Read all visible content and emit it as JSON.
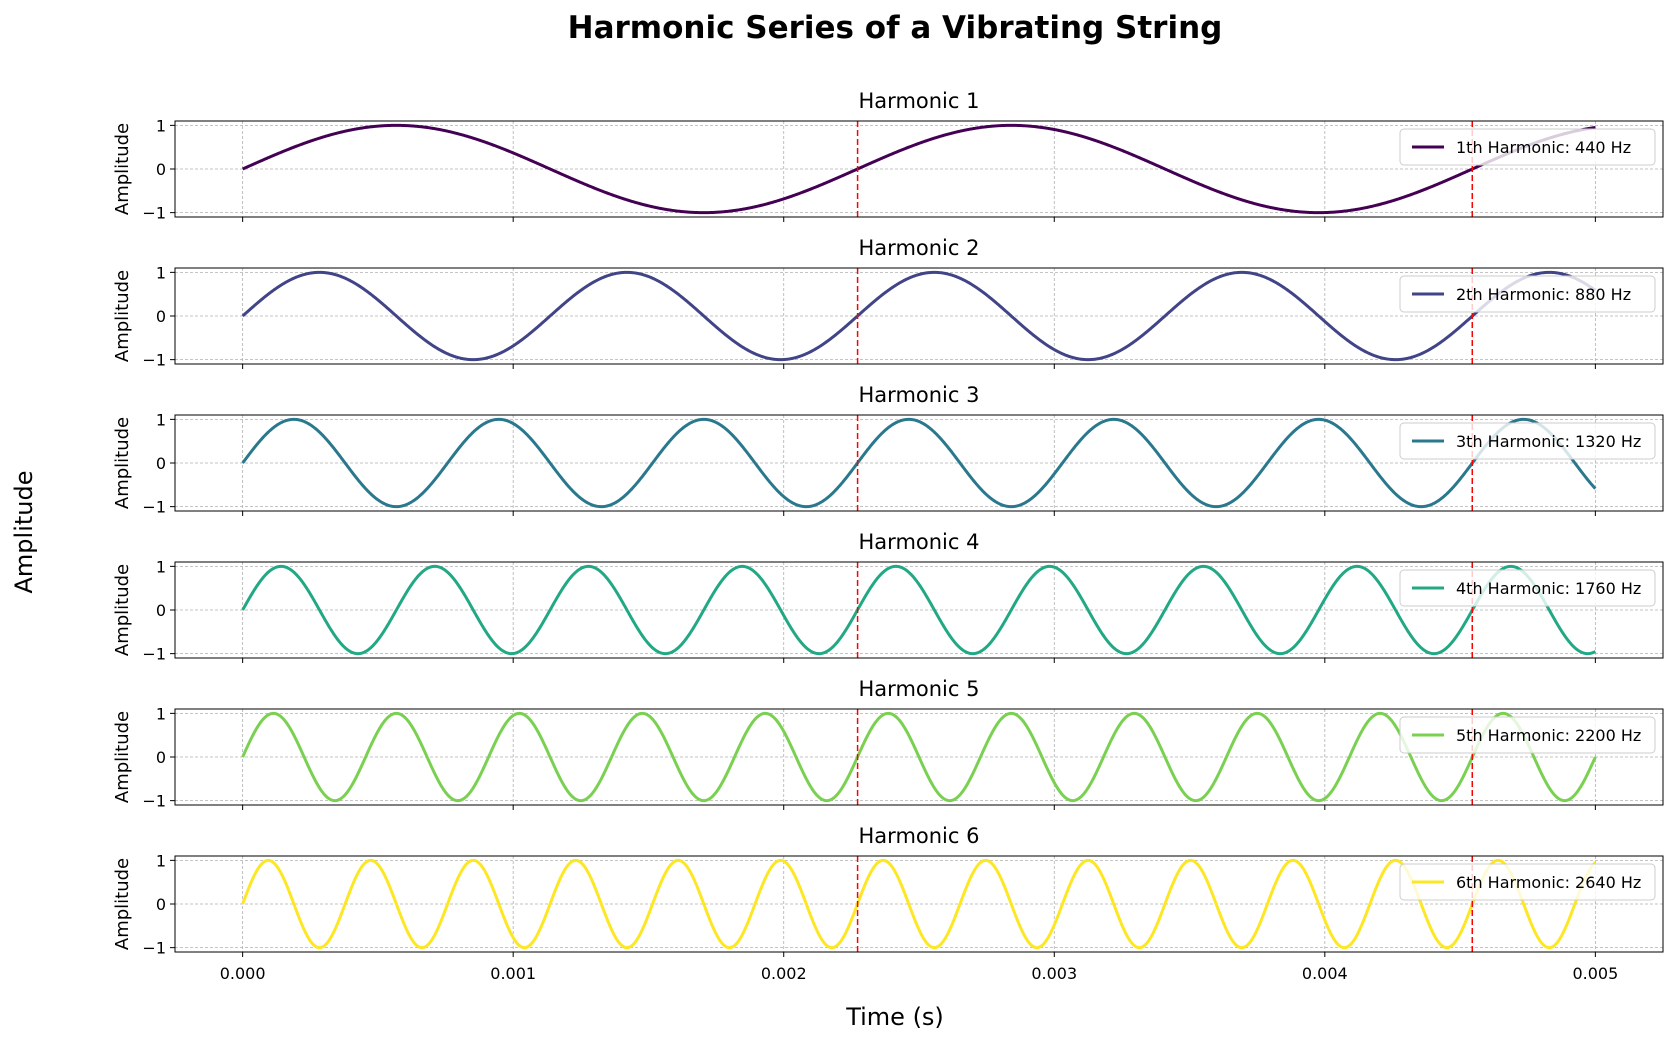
{
  "figure": {
    "title": "Harmonic Series of a Vibrating String",
    "xlabel": "Time (s)",
    "ylabel": "Amplitude"
  },
  "chart_data": [
    {
      "type": "line",
      "title": "Harmonic 1",
      "ylabel": "Amplitude",
      "series": [
        {
          "name": "1th Harmonic: 440 Hz",
          "function": "sin(2*pi*f*t)",
          "frequency": 440,
          "color": "#440154"
        }
      ],
      "x_range": [
        0,
        0.005
      ],
      "xlim": [
        -0.00025,
        0.00525
      ],
      "ylim": [
        -1.1,
        1.1
      ],
      "yticks": [
        -1,
        0,
        1
      ],
      "vlines": [
        0.002273,
        0.004545
      ],
      "vline_color": "#ff0000",
      "grid": true,
      "legend": "upper right"
    },
    {
      "type": "line",
      "title": "Harmonic 2",
      "ylabel": "Amplitude",
      "series": [
        {
          "name": "2th Harmonic: 880 Hz",
          "function": "sin(2*pi*f*t)",
          "frequency": 880,
          "color": "#414487"
        }
      ],
      "x_range": [
        0,
        0.005
      ],
      "xlim": [
        -0.00025,
        0.00525
      ],
      "ylim": [
        -1.1,
        1.1
      ],
      "yticks": [
        -1,
        0,
        1
      ],
      "vlines": [
        0.002273,
        0.004545
      ],
      "vline_color": "#ff0000",
      "grid": true,
      "legend": "upper right"
    },
    {
      "type": "line",
      "title": "Harmonic 3",
      "ylabel": "Amplitude",
      "series": [
        {
          "name": "3th Harmonic: 1320 Hz",
          "function": "sin(2*pi*f*t)",
          "frequency": 1320,
          "color": "#2a788e"
        }
      ],
      "x_range": [
        0,
        0.005
      ],
      "xlim": [
        -0.00025,
        0.00525
      ],
      "ylim": [
        -1.1,
        1.1
      ],
      "yticks": [
        -1,
        0,
        1
      ],
      "vlines": [
        0.002273,
        0.004545
      ],
      "vline_color": "#ff0000",
      "grid": true,
      "legend": "upper right"
    },
    {
      "type": "line",
      "title": "Harmonic 4",
      "ylabel": "Amplitude",
      "series": [
        {
          "name": "4th Harmonic: 1760 Hz",
          "function": "sin(2*pi*f*t)",
          "frequency": 1760,
          "color": "#22a884"
        }
      ],
      "x_range": [
        0,
        0.005
      ],
      "xlim": [
        -0.00025,
        0.00525
      ],
      "ylim": [
        -1.1,
        1.1
      ],
      "yticks": [
        -1,
        0,
        1
      ],
      "vlines": [
        0.002273,
        0.004545
      ],
      "vline_color": "#ff0000",
      "grid": true,
      "legend": "upper right"
    },
    {
      "type": "line",
      "title": "Harmonic 5",
      "ylabel": "Amplitude",
      "series": [
        {
          "name": "5th Harmonic: 2200 Hz",
          "function": "sin(2*pi*f*t)",
          "frequency": 2200,
          "color": "#7ad151"
        }
      ],
      "x_range": [
        0,
        0.005
      ],
      "xlim": [
        -0.00025,
        0.00525
      ],
      "ylim": [
        -1.1,
        1.1
      ],
      "yticks": [
        -1,
        0,
        1
      ],
      "vlines": [
        0.002273,
        0.004545
      ],
      "vline_color": "#ff0000",
      "grid": true,
      "legend": "upper right"
    },
    {
      "type": "line",
      "title": "Harmonic 6",
      "ylabel": "Amplitude",
      "series": [
        {
          "name": "6th Harmonic: 2640 Hz",
          "function": "sin(2*pi*f*t)",
          "frequency": 2640,
          "color": "#fde725"
        }
      ],
      "x_range": [
        0,
        0.005
      ],
      "xlim": [
        -0.00025,
        0.00525
      ],
      "ylim": [
        -1.1,
        1.1
      ],
      "yticks": [
        -1,
        0,
        1
      ],
      "xticks": [
        "0.000",
        "0.001",
        "0.002",
        "0.003",
        "0.004",
        "0.005"
      ],
      "vlines": [
        0.002273,
        0.004545
      ],
      "vline_color": "#ff0000",
      "grid": true,
      "legend": "upper right"
    }
  ]
}
